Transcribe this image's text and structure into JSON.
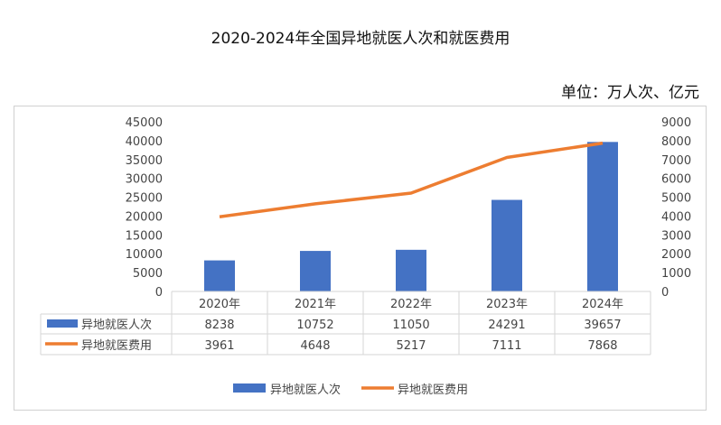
{
  "title": "2020-2024年全国异地就医人次和就医费用",
  "unit": "单位：万人次、亿元",
  "chart_data": {
    "type": "bar+line",
    "categories": [
      "2020年",
      "2021年",
      "2022年",
      "2023年",
      "2024年"
    ],
    "series": [
      {
        "name": "异地就医人次",
        "type": "bar",
        "axis": "left",
        "color": "#4472C4",
        "values": [
          8238,
          10752,
          11050,
          24291,
          39657
        ]
      },
      {
        "name": "异地就医费用",
        "type": "line",
        "axis": "right",
        "color": "#ED7D31",
        "values": [
          3961,
          4648,
          5217,
          7111,
          7868
        ]
      }
    ],
    "ylim_left": [
      0,
      45000
    ],
    "yticks_left": [
      0,
      5000,
      10000,
      15000,
      20000,
      25000,
      30000,
      35000,
      40000,
      45000
    ],
    "ylim_right": [
      0,
      9000
    ],
    "yticks_right": [
      0,
      1000,
      2000,
      3000,
      4000,
      5000,
      6000,
      7000,
      8000,
      9000
    ],
    "data_table": true,
    "grid": false,
    "legend": "bottom"
  }
}
